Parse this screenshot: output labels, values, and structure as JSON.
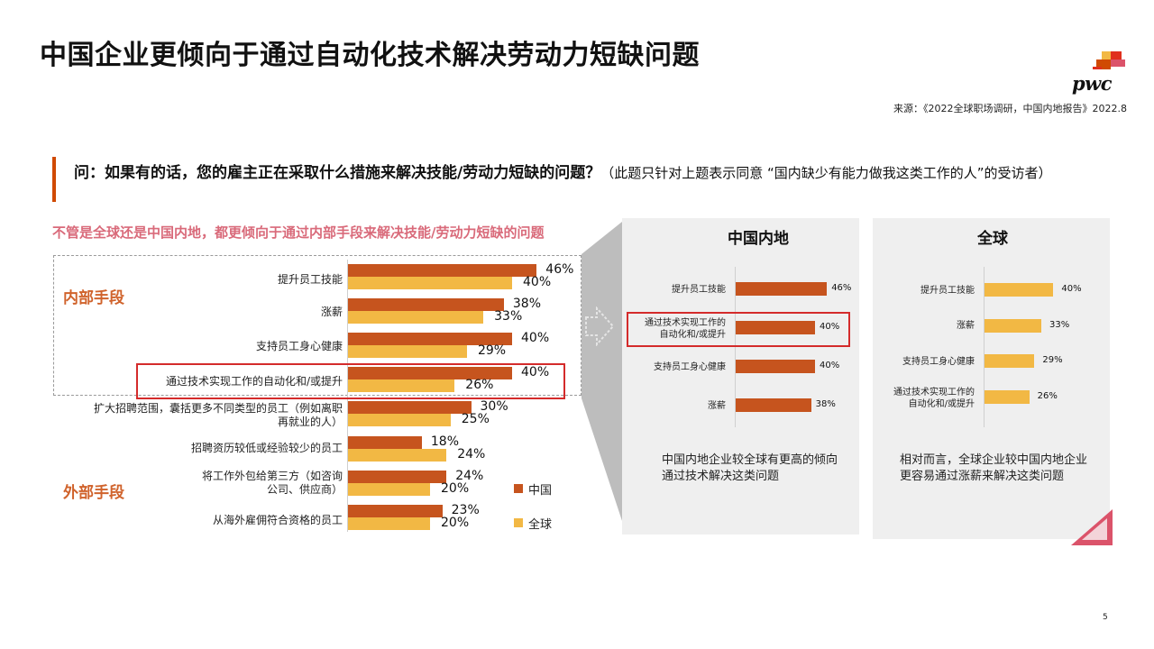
{
  "title": "中国企业更倾向于通过自动化技术解决劳动力短缺问题",
  "logo": {
    "text": "pwc"
  },
  "source": "来源：《2022全球职场调研，中国内地报告》2022.8",
  "question": {
    "main": "问：如果有的话，您的雇主正在采取什么措施来解决技能/劳动力短缺的问题？",
    "note": "（此题只针对上题表示同意 “国内缺少有能力做我这类工作的人”的受访者）"
  },
  "subheading": "不管是全球还是中国内地，都更倾向于通过内部手段来解决技能/劳动力短缺的问题",
  "groups": {
    "internal": "内部手段",
    "external": "外部手段"
  },
  "legend": {
    "china": "中国",
    "global": "全球"
  },
  "colors": {
    "china": "#c6541e",
    "global": "#f2b844",
    "highlight": "#d42b2b",
    "subheading": "#d96a7a",
    "group": "#d0632c"
  },
  "chart_data": [
    {
      "type": "bar",
      "orientation": "horizontal",
      "categories": [
        "提升员工技能",
        "涨薪",
        "支持员工身心健康",
        "通过技术实现工作的自动化和/或提升",
        "扩大招聘范围，囊括更多不同类型的员工（例如离职再就业的人）",
        "招聘资历较低或经验较少的员工",
        "将工作外包给第三方（如咨询公司、供应商）",
        "从海外雇佣符合资格的员工"
      ],
      "series": [
        {
          "name": "中国",
          "values": [
            46,
            38,
            40,
            40,
            30,
            18,
            24,
            23
          ],
          "labels": [
            "46%",
            "38%",
            "40%",
            "40%",
            "30%",
            "18%",
            "24%",
            "23%"
          ]
        },
        {
          "name": "全球",
          "values": [
            40,
            33,
            29,
            26,
            25,
            24,
            20,
            20
          ],
          "labels": [
            "40%",
            "33%",
            "29%",
            "26%",
            "25%",
            "24%",
            "20%",
            "20%"
          ]
        }
      ],
      "highlighted_category": "通过技术实现工作的自动化和/或提升"
    },
    {
      "type": "bar",
      "orientation": "horizontal",
      "title": "中国内地",
      "categories": [
        "提升员工技能",
        "通过技术实现工作的自动化和/或提升",
        "支持员工身心健康",
        "涨薪"
      ],
      "series": [
        {
          "values": [
            46,
            40,
            40,
            38
          ],
          "labels": [
            "46%",
            "40%",
            "40%",
            "38%"
          ]
        }
      ],
      "note": "中国内地企业较全球有更高的倾向通过技术解决这类问题"
    },
    {
      "type": "bar",
      "orientation": "horizontal",
      "title": "全球",
      "categories": [
        "提升员工技能",
        "涨薪",
        "支持员工身心健康",
        "通过技术实现工作的自动化和/或提升"
      ],
      "series": [
        {
          "values": [
            40,
            33,
            29,
            26
          ],
          "labels": [
            "40%",
            "33%",
            "29%",
            "26%"
          ]
        }
      ],
      "note": "相对而言，全球企业较中国内地企业更容易通过涨薪来解决这类问题"
    }
  ],
  "main_labels": [
    "提升员工技能",
    "涨薪",
    "支持员工身心健康",
    "通过技术实现工作的自动化和/或提升",
    "扩大招聘范围，囊括更多不同类型的员工（例如离职",
    "再就业的人）",
    "招聘资历较低或经验较少的员工",
    "将工作外包给第三方（如咨询",
    "公司、供应商）",
    "从海外雇佣符合资格的员工"
  ],
  "panel_cn_labels": [
    "提升员工技能",
    "通过技术实现工作的",
    "自动化和/或提升",
    "支持员工身心健康",
    "涨薪"
  ],
  "panel_gl_labels": [
    "提升员工技能",
    "涨薪",
    "支持员工身心健康",
    "通过技术实现工作的",
    "自动化和/或提升"
  ],
  "page_number": "5"
}
